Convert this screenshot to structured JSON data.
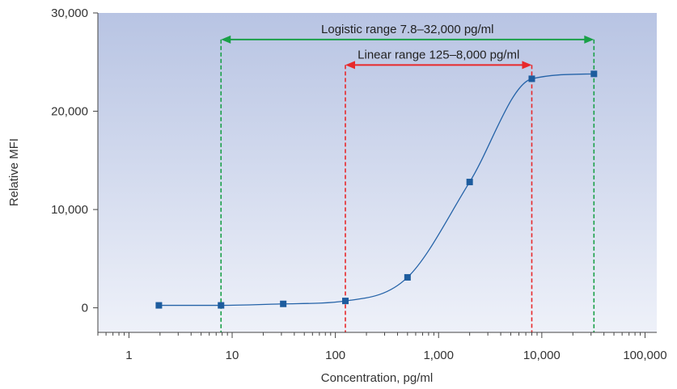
{
  "chart_data": {
    "type": "scatter",
    "title": "",
    "xlabel": "Concentration, pg/ml",
    "ylabel": "Relative MFI",
    "x_scale": "log",
    "xlim": [
      0.5,
      130000
    ],
    "ylim": [
      -2500,
      30000
    ],
    "x_ticks": [
      1,
      10,
      100,
      1000,
      10000,
      100000
    ],
    "x_tick_labels": [
      "1",
      "10",
      "100",
      "1,000",
      "10,000",
      "100,000"
    ],
    "y_ticks": [
      0,
      10000,
      20000,
      30000
    ],
    "y_tick_labels": [
      "0",
      "10,000",
      "20,000",
      "30,000"
    ],
    "grid": false,
    "background_gradient": [
      "#b8c4e3",
      "#eef1f9"
    ],
    "series": [
      {
        "marker_color": "#1d5c9e",
        "line_color": "#2563a8",
        "points": [
          {
            "x": 1.95,
            "y": 250
          },
          {
            "x": 7.8,
            "y": 250
          },
          {
            "x": 31.25,
            "y": 400
          },
          {
            "x": 125,
            "y": 700
          },
          {
            "x": 500,
            "y": 3100
          },
          {
            "x": 2000,
            "y": 12800
          },
          {
            "x": 8000,
            "y": 23300
          },
          {
            "x": 32000,
            "y": 23800
          }
        ]
      }
    ],
    "ranges": [
      {
        "label": "Logistic range 7.8–32,000 pg/ml",
        "from": 7.8,
        "to": 32000,
        "color": "#1aa048",
        "arrow_y": 27300
      },
      {
        "label": "Linear range 125–8,000 pg/ml",
        "from": 125,
        "to": 8000,
        "color": "#e8292b",
        "arrow_y": 24700
      }
    ]
  }
}
